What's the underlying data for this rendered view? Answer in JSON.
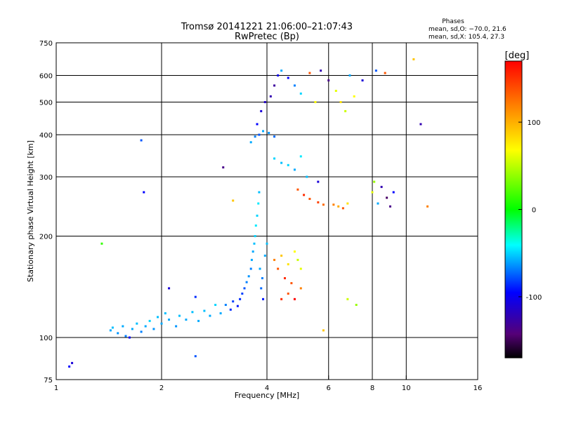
{
  "chart_data": {
    "type": "scatter",
    "title": "Tromsø 20141221 21:06:00–21:07:43",
    "subtitle": "RwPretec (Bp)",
    "xlabel": "Frequency [MHz]",
    "ylabel": "Stationary phase Virtual Height [km]",
    "x_scale": "log",
    "y_scale": "log",
    "xlim": [
      1,
      16
    ],
    "ylim": [
      75,
      750
    ],
    "x_ticks": [
      {
        "v": 1,
        "label": "1"
      },
      {
        "v": 2,
        "label": "2"
      },
      {
        "v": 4,
        "label": "4"
      },
      {
        "v": 6,
        "label": "6"
      },
      {
        "v": 8,
        "label": "8"
      },
      {
        "v": 10,
        "label": "10"
      },
      {
        "v": 16,
        "label": "16"
      }
    ],
    "y_ticks": [
      {
        "v": 75,
        "label": "75"
      },
      {
        "v": 100,
        "label": "100"
      },
      {
        "v": 200,
        "label": "200"
      },
      {
        "v": 300,
        "label": "300"
      },
      {
        "v": 400,
        "label": "400"
      },
      {
        "v": 500,
        "label": "500"
      },
      {
        "v": 600,
        "label": "600"
      },
      {
        "v": 750,
        "label": "750"
      }
    ],
    "x_gridlines": [
      2,
      4,
      6,
      8,
      10
    ],
    "y_gridlines": [
      100,
      200,
      300,
      400,
      500,
      600
    ],
    "colorbar": {
      "label": "[deg]",
      "range": [
        -170,
        170
      ],
      "ticks": [
        {
          "v": 100,
          "label": "100"
        },
        {
          "v": 0,
          "label": "0"
        },
        {
          "v": -100,
          "label": "-100"
        }
      ],
      "colormap": "rainbow (black/purple → blue → cyan → green → yellow → red)"
    },
    "phase_box": {
      "header": "Phases",
      "line1": "mean, sd,O: −70.0, 21.6",
      "line2": "mean, sd,X: 105.4, 27.3"
    },
    "series": [
      {
        "values": [
          {
            "x": 1.09,
            "y": 82,
            "phase": -100
          },
          {
            "x": 1.11,
            "y": 84,
            "phase": -110
          },
          {
            "x": 1.43,
            "y": 105,
            "phase": -60
          },
          {
            "x": 1.45,
            "y": 107,
            "phase": -55
          },
          {
            "x": 1.5,
            "y": 103,
            "phase": -65
          },
          {
            "x": 1.55,
            "y": 108,
            "phase": -60
          },
          {
            "x": 1.58,
            "y": 101,
            "phase": -70
          },
          {
            "x": 1.62,
            "y": 100,
            "phase": -100
          },
          {
            "x": 1.65,
            "y": 106,
            "phase": -60
          },
          {
            "x": 1.7,
            "y": 110,
            "phase": -55
          },
          {
            "x": 1.75,
            "y": 104,
            "phase": -70
          },
          {
            "x": 1.8,
            "y": 108,
            "phase": -60
          },
          {
            "x": 1.85,
            "y": 112,
            "phase": -50
          },
          {
            "x": 1.9,
            "y": 106,
            "phase": -65
          },
          {
            "x": 1.95,
            "y": 115,
            "phase": -55
          },
          {
            "x": 2.0,
            "y": 110,
            "phase": -60
          },
          {
            "x": 2.05,
            "y": 118,
            "phase": -55
          },
          {
            "x": 2.1,
            "y": 113,
            "phase": -60
          },
          {
            "x": 2.2,
            "y": 108,
            "phase": -65
          },
          {
            "x": 2.25,
            "y": 116,
            "phase": -55
          },
          {
            "x": 2.35,
            "y": 113,
            "phase": -60
          },
          {
            "x": 2.45,
            "y": 119,
            "phase": -55
          },
          {
            "x": 2.55,
            "y": 112,
            "phase": -60
          },
          {
            "x": 2.65,
            "y": 120,
            "phase": -55
          },
          {
            "x": 2.75,
            "y": 116,
            "phase": -60
          },
          {
            "x": 2.85,
            "y": 125,
            "phase": -50
          },
          {
            "x": 2.95,
            "y": 118,
            "phase": -60
          },
          {
            "x": 3.05,
            "y": 125,
            "phase": -70
          },
          {
            "x": 3.15,
            "y": 121,
            "phase": -90
          },
          {
            "x": 3.2,
            "y": 128,
            "phase": -85
          },
          {
            "x": 3.3,
            "y": 124,
            "phase": -95
          },
          {
            "x": 3.35,
            "y": 130,
            "phase": -90
          },
          {
            "x": 3.4,
            "y": 135,
            "phase": -85
          },
          {
            "x": 3.45,
            "y": 140,
            "phase": -80
          },
          {
            "x": 3.5,
            "y": 146,
            "phase": -70
          },
          {
            "x": 3.55,
            "y": 152,
            "phase": -65
          },
          {
            "x": 3.6,
            "y": 160,
            "phase": -70
          },
          {
            "x": 3.62,
            "y": 170,
            "phase": -60
          },
          {
            "x": 3.65,
            "y": 180,
            "phase": -60
          },
          {
            "x": 3.68,
            "y": 190,
            "phase": -55
          },
          {
            "x": 3.7,
            "y": 200,
            "phase": -50
          },
          {
            "x": 3.72,
            "y": 215,
            "phase": -45
          },
          {
            "x": 3.75,
            "y": 230,
            "phase": -50
          },
          {
            "x": 3.78,
            "y": 250,
            "phase": -45
          },
          {
            "x": 3.8,
            "y": 270,
            "phase": -55
          },
          {
            "x": 3.82,
            "y": 160,
            "phase": -60
          },
          {
            "x": 3.85,
            "y": 140,
            "phase": -75
          },
          {
            "x": 3.88,
            "y": 150,
            "phase": -70
          },
          {
            "x": 3.9,
            "y": 130,
            "phase": -95
          },
          {
            "x": 3.95,
            "y": 175,
            "phase": -60
          },
          {
            "x": 4.0,
            "y": 190,
            "phase": -55
          },
          {
            "x": 3.6,
            "y": 380,
            "phase": -60
          },
          {
            "x": 3.7,
            "y": 395,
            "phase": -70
          },
          {
            "x": 3.8,
            "y": 400,
            "phase": -80
          },
          {
            "x": 3.9,
            "y": 410,
            "phase": -60
          },
          {
            "x": 4.05,
            "y": 405,
            "phase": -65
          },
          {
            "x": 4.2,
            "y": 395,
            "phase": -75
          },
          {
            "x": 3.75,
            "y": 430,
            "phase": -100
          },
          {
            "x": 3.85,
            "y": 470,
            "phase": -110
          },
          {
            "x": 3.95,
            "y": 500,
            "phase": -115
          },
          {
            "x": 4.1,
            "y": 520,
            "phase": -120
          },
          {
            "x": 4.2,
            "y": 560,
            "phase": -125
          },
          {
            "x": 4.3,
            "y": 600,
            "phase": -105
          },
          {
            "x": 4.4,
            "y": 620,
            "phase": -60
          },
          {
            "x": 4.6,
            "y": 590,
            "phase": -100
          },
          {
            "x": 4.8,
            "y": 560,
            "phase": -70
          },
          {
            "x": 5.0,
            "y": 530,
            "phase": -50
          },
          {
            "x": 5.3,
            "y": 610,
            "phase": 150
          },
          {
            "x": 5.5,
            "y": 500,
            "phase": 100
          },
          {
            "x": 5.7,
            "y": 620,
            "phase": -120
          },
          {
            "x": 6.0,
            "y": 580,
            "phase": -130
          },
          {
            "x": 6.3,
            "y": 540,
            "phase": 90
          },
          {
            "x": 6.5,
            "y": 500,
            "phase": 110
          },
          {
            "x": 6.7,
            "y": 470,
            "phase": 80
          },
          {
            "x": 6.9,
            "y": 600,
            "phase": -60
          },
          {
            "x": 7.1,
            "y": 520,
            "phase": 100
          },
          {
            "x": 7.5,
            "y": 580,
            "phase": -110
          },
          {
            "x": 8.2,
            "y": 620,
            "phase": -80
          },
          {
            "x": 8.7,
            "y": 610,
            "phase": 150
          },
          {
            "x": 10.5,
            "y": 670,
            "phase": 120
          },
          {
            "x": 11.0,
            "y": 430,
            "phase": -120
          },
          {
            "x": 4.2,
            "y": 340,
            "phase": -50
          },
          {
            "x": 4.4,
            "y": 330,
            "phase": -55
          },
          {
            "x": 4.6,
            "y": 325,
            "phase": -50
          },
          {
            "x": 4.8,
            "y": 315,
            "phase": -60
          },
          {
            "x": 5.0,
            "y": 345,
            "phase": -45
          },
          {
            "x": 5.2,
            "y": 300,
            "phase": -55
          },
          {
            "x": 4.9,
            "y": 275,
            "phase": 150
          },
          {
            "x": 5.1,
            "y": 265,
            "phase": 160
          },
          {
            "x": 5.3,
            "y": 258,
            "phase": 150
          },
          {
            "x": 5.6,
            "y": 252,
            "phase": 155
          },
          {
            "x": 5.8,
            "y": 248,
            "phase": 145
          },
          {
            "x": 5.6,
            "y": 290,
            "phase": -110
          },
          {
            "x": 6.2,
            "y": 248,
            "phase": 140
          },
          {
            "x": 6.4,
            "y": 245,
            "phase": 130
          },
          {
            "x": 6.6,
            "y": 242,
            "phase": 150
          },
          {
            "x": 6.8,
            "y": 250,
            "phase": 110
          },
          {
            "x": 8.0,
            "y": 270,
            "phase": 90
          },
          {
            "x": 8.1,
            "y": 290,
            "phase": 60
          },
          {
            "x": 8.3,
            "y": 250,
            "phase": -60
          },
          {
            "x": 8.5,
            "y": 280,
            "phase": -120
          },
          {
            "x": 8.8,
            "y": 260,
            "phase": -140
          },
          {
            "x": 9.0,
            "y": 245,
            "phase": -130
          },
          {
            "x": 9.2,
            "y": 270,
            "phase": -100
          },
          {
            "x": 11.5,
            "y": 245,
            "phase": 140
          },
          {
            "x": 4.2,
            "y": 170,
            "phase": 140
          },
          {
            "x": 4.3,
            "y": 160,
            "phase": 150
          },
          {
            "x": 4.4,
            "y": 175,
            "phase": 120
          },
          {
            "x": 4.5,
            "y": 150,
            "phase": 160
          },
          {
            "x": 4.6,
            "y": 165,
            "phase": 110
          },
          {
            "x": 4.7,
            "y": 145,
            "phase": 150
          },
          {
            "x": 4.8,
            "y": 180,
            "phase": 100
          },
          {
            "x": 4.9,
            "y": 170,
            "phase": 80
          },
          {
            "x": 5.0,
            "y": 160,
            "phase": 90
          },
          {
            "x": 4.4,
            "y": 130,
            "phase": 160
          },
          {
            "x": 4.6,
            "y": 135,
            "phase": 150
          },
          {
            "x": 4.8,
            "y": 130,
            "phase": 170
          },
          {
            "x": 5.0,
            "y": 140,
            "phase": 140
          },
          {
            "x": 5.8,
            "y": 105,
            "phase": 120
          },
          {
            "x": 6.8,
            "y": 130,
            "phase": 80
          },
          {
            "x": 7.2,
            "y": 125,
            "phase": 60
          },
          {
            "x": 1.35,
            "y": 190,
            "phase": 20
          },
          {
            "x": 1.75,
            "y": 385,
            "phase": -80
          },
          {
            "x": 1.78,
            "y": 270,
            "phase": -100
          },
          {
            "x": 2.1,
            "y": 140,
            "phase": -110
          },
          {
            "x": 2.5,
            "y": 132,
            "phase": -90
          },
          {
            "x": 3.0,
            "y": 320,
            "phase": -130
          },
          {
            "x": 3.2,
            "y": 255,
            "phase": 120
          },
          {
            "x": 2.5,
            "y": 88,
            "phase": -80
          }
        ]
      }
    ]
  }
}
